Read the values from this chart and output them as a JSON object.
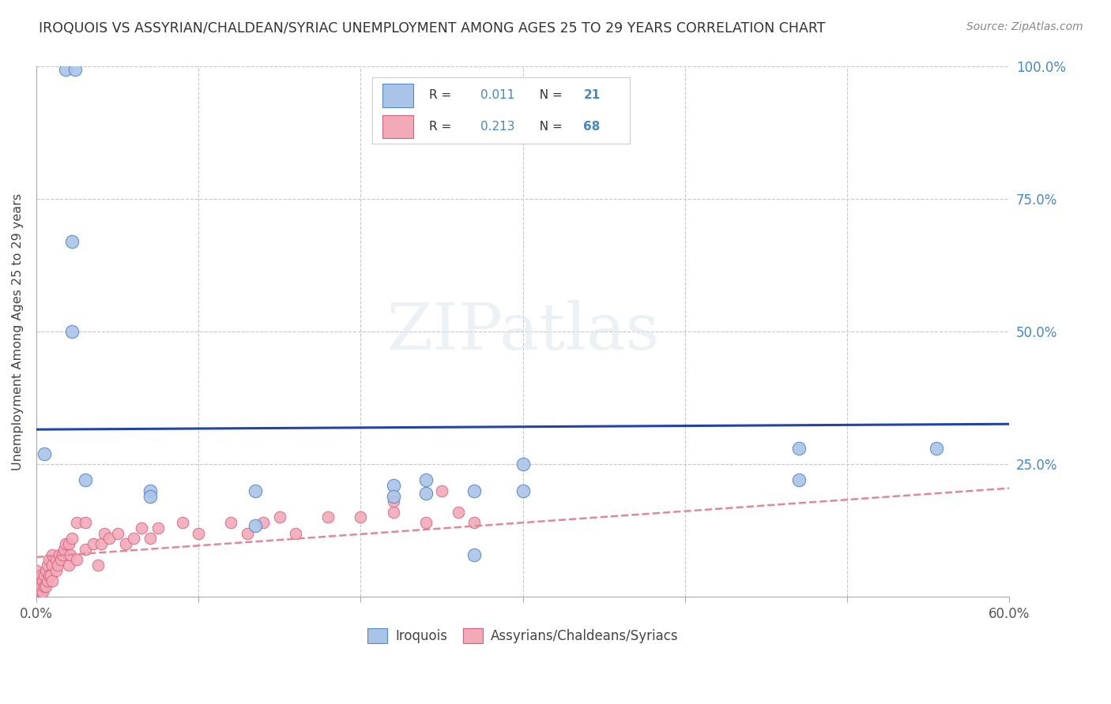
{
  "title": "IROQUOIS VS ASSYRIAN/CHALDEAN/SYRIAC UNEMPLOYMENT AMONG AGES 25 TO 29 YEARS CORRELATION CHART",
  "source": "Source: ZipAtlas.com",
  "ylabel": "Unemployment Among Ages 25 to 29 years",
  "xlim": [
    0.0,
    0.6
  ],
  "ylim": [
    0.0,
    1.0
  ],
  "blue_color": "#aac4e8",
  "pink_color": "#f2aab8",
  "blue_edge": "#5588cc",
  "pink_edge": "#d96080",
  "trend_blue_color": "#2244aa",
  "trend_pink_color": "#e08898",
  "legend_text_color": "#4488cc",
  "background_color": "#ffffff",
  "grid_color": "#c8c8c8",
  "title_color": "#333333",
  "source_color": "#888888",
  "watermark": "ZIPatlas",
  "iroquois_x": [
    0.018,
    0.024,
    0.005,
    0.022,
    0.022,
    0.22,
    0.47,
    0.555,
    0.07,
    0.135,
    0.24,
    0.27,
    0.3,
    0.135,
    0.07,
    0.22,
    0.27,
    0.03,
    0.3,
    0.47,
    0.24
  ],
  "iroquois_y": [
    0.995,
    0.995,
    0.27,
    0.67,
    0.5,
    0.21,
    0.28,
    0.28,
    0.2,
    0.2,
    0.22,
    0.2,
    0.25,
    0.135,
    0.19,
    0.19,
    0.08,
    0.22,
    0.2,
    0.22,
    0.195
  ],
  "assyrian_x": [
    0.0,
    0.0,
    0.0,
    0.0,
    0.0,
    0.0,
    0.001,
    0.001,
    0.002,
    0.003,
    0.003,
    0.003,
    0.004,
    0.004,
    0.005,
    0.005,
    0.006,
    0.006,
    0.007,
    0.007,
    0.008,
    0.008,
    0.009,
    0.01,
    0.01,
    0.01,
    0.012,
    0.012,
    0.013,
    0.014,
    0.015,
    0.016,
    0.017,
    0.018,
    0.02,
    0.02,
    0.021,
    0.022,
    0.025,
    0.025,
    0.03,
    0.03,
    0.035,
    0.038,
    0.04,
    0.042,
    0.045,
    0.05,
    0.055,
    0.06,
    0.065,
    0.07,
    0.075,
    0.09,
    0.1,
    0.12,
    0.13,
    0.14,
    0.15,
    0.16,
    0.18,
    0.2,
    0.22,
    0.24,
    0.26,
    0.27,
    0.22,
    0.25
  ],
  "assyrian_y": [
    0.0,
    0.005,
    0.01,
    0.02,
    0.03,
    0.05,
    0.0,
    0.01,
    0.01,
    0.01,
    0.02,
    0.04,
    0.01,
    0.03,
    0.02,
    0.04,
    0.02,
    0.05,
    0.03,
    0.06,
    0.04,
    0.07,
    0.04,
    0.03,
    0.06,
    0.08,
    0.05,
    0.07,
    0.06,
    0.08,
    0.07,
    0.08,
    0.09,
    0.1,
    0.06,
    0.1,
    0.08,
    0.11,
    0.07,
    0.14,
    0.09,
    0.14,
    0.1,
    0.06,
    0.1,
    0.12,
    0.11,
    0.12,
    0.1,
    0.11,
    0.13,
    0.11,
    0.13,
    0.14,
    0.12,
    0.14,
    0.12,
    0.14,
    0.15,
    0.12,
    0.15,
    0.15,
    0.16,
    0.14,
    0.16,
    0.14,
    0.18,
    0.2
  ]
}
